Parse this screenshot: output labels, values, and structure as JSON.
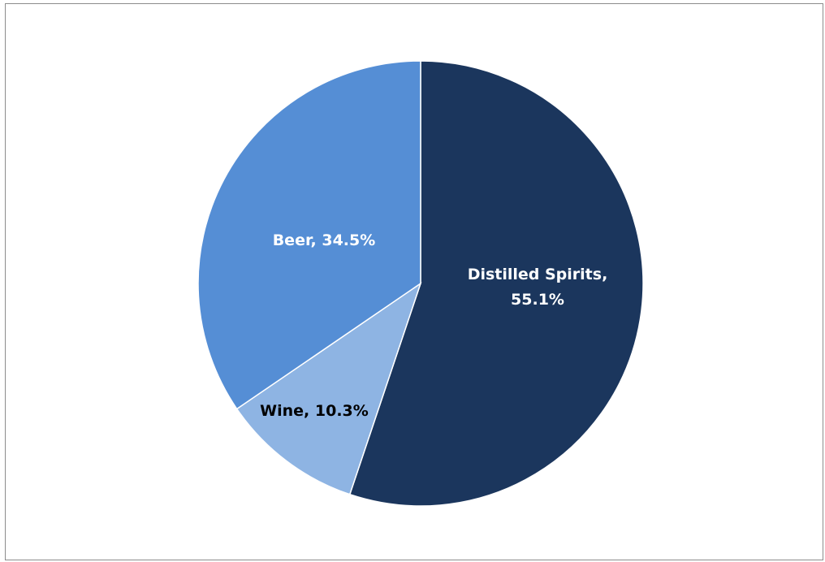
{
  "chart_data": {
    "type": "pie",
    "title": "",
    "slices": [
      {
        "name": "Distilled Spirits",
        "value": 55.1,
        "label_line1": "Distilled Spirits,",
        "label_line2": "55.1%",
        "color": "#1b365d",
        "label_color": "#ffffff"
      },
      {
        "name": "Wine",
        "value": 10.3,
        "label_line1": "Wine, 10.3%",
        "label_line2": "",
        "color": "#8eb4e3",
        "label_color": "#000000"
      },
      {
        "name": "Beer",
        "value": 34.5,
        "label_line1": "Beer, 34.5%",
        "label_line2": "",
        "color": "#558ed5",
        "label_color": "#ffffff"
      }
    ],
    "start_angle": "12 o'clock",
    "direction": "clockwise",
    "legend": "none"
  }
}
